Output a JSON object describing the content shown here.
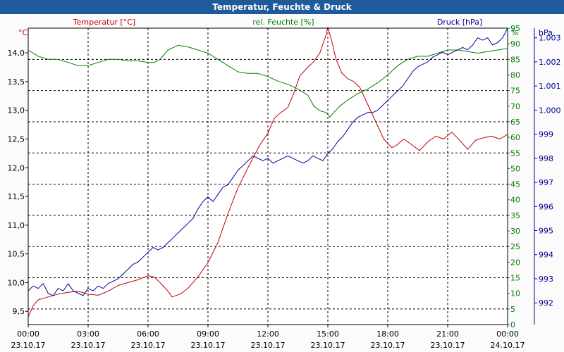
{
  "chart_data": {
    "type": "line",
    "title": "Temperatur, Feuchte & Druck",
    "x_ticks": [
      [
        "00:00",
        "23.10.17"
      ],
      [
        "03:00",
        "23.10.17"
      ],
      [
        "06:00",
        "23.10.17"
      ],
      [
        "09:00",
        "23.10.17"
      ],
      [
        "12:00",
        "23.10.17"
      ],
      [
        "15:00",
        "23.10.17"
      ],
      [
        "18:00",
        "23.10.17"
      ],
      [
        "21:00",
        "23.10.17"
      ],
      [
        "00:00",
        "24.10.17"
      ]
    ],
    "xlim": [
      0,
      24
    ],
    "axes": {
      "temperature": {
        "label": "Temperatur [°C]",
        "unit": "°C",
        "ylim": [
          9.27,
          14.43
        ],
        "ticks": [
          "9,5",
          "10,0",
          "10,5",
          "11,0",
          "11,5",
          "12,0",
          "12,5",
          "13,0",
          "13,5",
          "14,0"
        ],
        "tick_values": [
          9.5,
          10.0,
          10.5,
          11.0,
          11.5,
          12.0,
          12.5,
          13.0,
          13.5,
          14.0
        ],
        "color": "#c00000"
      },
      "humidity": {
        "label": "rel. Feuchte [%]",
        "unit": "%",
        "ylim": [
          0,
          95
        ],
        "ticks": [
          "0",
          "5",
          "10",
          "15",
          "20",
          "25",
          "30",
          "35",
          "40",
          "45",
          "50",
          "55",
          "60",
          "65",
          "70",
          "75",
          "80",
          "85",
          "90",
          "95"
        ],
        "tick_values": [
          0,
          5,
          10,
          15,
          20,
          25,
          30,
          35,
          40,
          45,
          50,
          55,
          60,
          65,
          70,
          75,
          80,
          85,
          90,
          95
        ],
        "color": "#008000"
      },
      "pressure": {
        "label": "Druck [hPa]",
        "unit": "hPa",
        "ylim": [
          991.1,
          1003.4
        ],
        "ticks": [
          "992",
          "993",
          "994",
          "995",
          "996",
          "997",
          "998",
          "999",
          "1.000",
          "1.001",
          "1.002",
          "1.003"
        ],
        "tick_values": [
          992,
          993,
          994,
          995,
          996,
          997,
          998,
          999,
          1000,
          1001,
          1002,
          1003
        ],
        "color": "#000090"
      }
    },
    "grid": true,
    "series": [
      {
        "name": "Temperatur [°C]",
        "axis": "temperature",
        "color": "#c00000",
        "x": [
          0,
          0.25,
          0.5,
          1,
          1.5,
          2,
          2.5,
          3,
          3.5,
          4,
          4.5,
          5,
          5.5,
          6,
          6.3,
          6.6,
          7,
          7.2,
          7.6,
          8,
          8.5,
          9,
          9.5,
          10,
          10.5,
          11,
          11.3,
          11.6,
          12,
          12.3,
          12.6,
          13,
          13.3,
          13.6,
          14,
          14.3,
          14.6,
          14.9,
          15.0,
          15.2,
          15.4,
          15.7,
          16,
          16.3,
          16.6,
          17,
          17.4,
          17.8,
          18.2,
          18.4,
          18.8,
          19.2,
          19.6,
          20,
          20.4,
          20.8,
          21.2,
          21.6,
          22,
          22.4,
          22.8,
          23.2,
          23.6,
          24
        ],
        "values": [
          9.4,
          9.6,
          9.7,
          9.75,
          9.8,
          9.83,
          9.85,
          9.8,
          9.78,
          9.85,
          9.95,
          10.0,
          10.05,
          10.12,
          10.1,
          10.0,
          9.85,
          9.75,
          9.8,
          9.9,
          10.1,
          10.35,
          10.7,
          11.2,
          11.65,
          12.0,
          12.2,
          12.4,
          12.6,
          12.85,
          12.95,
          13.05,
          13.3,
          13.6,
          13.75,
          13.85,
          14.0,
          14.3,
          14.45,
          14.2,
          13.9,
          13.65,
          13.55,
          13.5,
          13.4,
          13.1,
          12.8,
          12.5,
          12.35,
          12.38,
          12.5,
          12.4,
          12.3,
          12.45,
          12.55,
          12.5,
          12.62,
          12.48,
          12.32,
          12.48,
          12.52,
          12.55,
          12.5,
          12.58
        ]
      },
      {
        "name": "rel. Feuchte [%]",
        "axis": "humidity",
        "color": "#008000",
        "x": [
          0,
          0.5,
          1,
          1.5,
          2,
          2.5,
          3,
          3.5,
          4,
          4.5,
          5,
          5.5,
          6,
          6.3,
          6.6,
          7,
          7.5,
          8,
          8.5,
          9,
          9.5,
          10,
          10.5,
          11,
          11.5,
          12,
          12.5,
          13,
          13.5,
          14,
          14.3,
          14.6,
          14.9,
          15.1,
          15.3,
          15.6,
          16,
          16.5,
          17,
          17.5,
          18,
          18.5,
          19,
          19.5,
          20,
          20.5,
          21,
          21.5,
          22,
          22.5,
          23,
          23.5,
          24
        ],
        "values": [
          88,
          86,
          85,
          85,
          84,
          83,
          83,
          84,
          85,
          85,
          84.5,
          84.5,
          84,
          84,
          85,
          88,
          89.5,
          89,
          88,
          87,
          85,
          83,
          81,
          80.5,
          80.5,
          79.5,
          78,
          77,
          75.5,
          73.5,
          70,
          68.5,
          68,
          66.5,
          68,
          70,
          72,
          74,
          75.5,
          77.5,
          80,
          83,
          85,
          86,
          86,
          87,
          88,
          88,
          87.5,
          87,
          87.5,
          88,
          88.5
        ]
      },
      {
        "name": "Druck [hPa]",
        "axis": "pressure",
        "color": "#000090",
        "x": [
          0,
          0.25,
          0.5,
          0.75,
          1,
          1.25,
          1.5,
          1.75,
          2,
          2.25,
          2.5,
          2.75,
          3,
          3.25,
          3.5,
          3.75,
          4,
          4.25,
          4.5,
          4.75,
          5,
          5.25,
          5.5,
          5.75,
          6,
          6.25,
          6.5,
          6.75,
          7,
          7.25,
          7.5,
          7.75,
          8,
          8.25,
          8.5,
          8.75,
          9,
          9.25,
          9.5,
          9.75,
          10,
          10.25,
          10.5,
          10.75,
          11,
          11.25,
          11.5,
          11.75,
          12,
          12.25,
          12.5,
          12.75,
          13,
          13.25,
          13.5,
          13.75,
          14,
          14.25,
          14.5,
          14.75,
          15,
          15.25,
          15.5,
          15.75,
          16,
          16.25,
          16.5,
          16.75,
          17,
          17.25,
          17.5,
          17.75,
          18,
          18.25,
          18.5,
          18.75,
          19,
          19.25,
          19.5,
          19.75,
          20,
          20.25,
          20.5,
          20.75,
          21,
          21.25,
          21.5,
          21.75,
          22,
          22.25,
          22.5,
          22.75,
          23,
          23.25,
          23.5,
          23.75,
          24
        ],
        "values": [
          992.5,
          992.7,
          992.6,
          992.8,
          992.4,
          992.3,
          992.6,
          992.5,
          992.8,
          992.5,
          992.4,
          992.3,
          992.6,
          992.5,
          992.7,
          992.6,
          992.8,
          992.9,
          993.0,
          993.2,
          993.4,
          993.6,
          993.7,
          993.9,
          994.1,
          994.3,
          994.2,
          994.3,
          994.5,
          994.7,
          994.9,
          995.1,
          995.3,
          995.5,
          995.9,
          996.2,
          996.4,
          996.2,
          996.5,
          996.8,
          996.9,
          997.2,
          997.5,
          997.7,
          997.9,
          998.1,
          998.0,
          997.9,
          998.0,
          997.8,
          997.9,
          998.0,
          998.1,
          998.0,
          997.9,
          997.8,
          997.9,
          998.1,
          998.0,
          997.9,
          998.2,
          998.4,
          998.7,
          998.9,
          999.2,
          999.5,
          999.7,
          999.8,
          999.9,
          999.9,
          1000.0,
          1000.2,
          1000.4,
          1000.6,
          1000.8,
          1001.0,
          1001.3,
          1001.6,
          1001.8,
          1001.9,
          1002.0,
          1002.2,
          1002.3,
          1002.4,
          1002.3,
          1002.4,
          1002.5,
          1002.6,
          1002.5,
          1002.7,
          1003.0,
          1002.9,
          1003.0,
          1002.7,
          1002.8,
          1003.0,
          1003.4
        ]
      }
    ]
  }
}
